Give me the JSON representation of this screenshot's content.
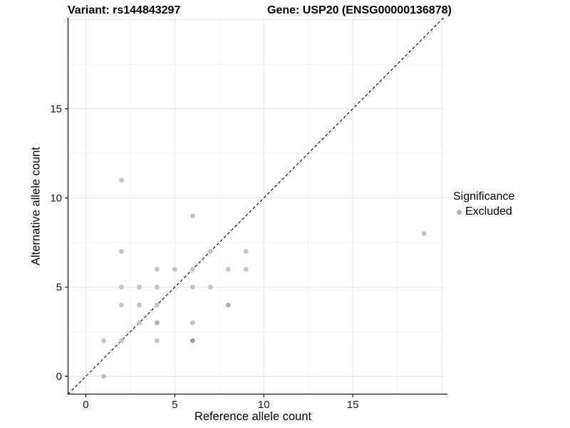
{
  "chart_data": {
    "type": "scatter",
    "title_variant": "Variant: rs144843297",
    "title_gene": "Gene: USP20 (ENSG00000136878)",
    "xlabel": "Reference allele count",
    "ylabel": "Alternative allele count",
    "xlim": [
      -1,
      20.2
    ],
    "ylim": [
      -1,
      20.1
    ],
    "xticks": [
      0,
      5,
      10,
      15
    ],
    "yticks": [
      0,
      5,
      10,
      15
    ],
    "major_gridlines_x": [
      0,
      5,
      10,
      15,
      20
    ],
    "minor_gridlines_x": [
      2.5,
      7.5,
      12.5,
      17.5
    ],
    "major_gridlines_y": [
      0,
      5,
      10,
      15,
      20
    ],
    "minor_gridlines_y": [
      2.5,
      7.5,
      12.5,
      17.5
    ],
    "grid": true,
    "identity_line": {
      "slope": 1,
      "intercept": 0,
      "style": "dashed",
      "color": "#000000"
    },
    "point_format": "[reference_allele_count, alternative_allele_count, overlap_count]",
    "series": [
      {
        "name": "Excluded",
        "points": [
          [
            1,
            0,
            1
          ],
          [
            1,
            2,
            1
          ],
          [
            2,
            2,
            1
          ],
          [
            4,
            2,
            1
          ],
          [
            6,
            2,
            3
          ],
          [
            3,
            3,
            1
          ],
          [
            4,
            3,
            2
          ],
          [
            6,
            3,
            1
          ],
          [
            2,
            4,
            1
          ],
          [
            3,
            4,
            1
          ],
          [
            4,
            4,
            1
          ],
          [
            8,
            4,
            2
          ],
          [
            2,
            5,
            1
          ],
          [
            3,
            5,
            1
          ],
          [
            4,
            5,
            1
          ],
          [
            6,
            5,
            1
          ],
          [
            7,
            5,
            1
          ],
          [
            4,
            6,
            1
          ],
          [
            5,
            6,
            1
          ],
          [
            6,
            6,
            1
          ],
          [
            8,
            6,
            1
          ],
          [
            9,
            6,
            1
          ],
          [
            2,
            7,
            1
          ],
          [
            7,
            7,
            1
          ],
          [
            9,
            7,
            1
          ],
          [
            19,
            8,
            1
          ],
          [
            6,
            9,
            1
          ],
          [
            2,
            11,
            1
          ]
        ]
      }
    ],
    "point_colors_by_overlap": {
      "1": "#c5c5c5",
      "2": "#aeaeae",
      "3": "#9e9e9e"
    },
    "legend": {
      "title": "Significance",
      "position": "right",
      "entries": [
        {
          "label": "Excluded",
          "color": "#b2b2b2"
        }
      ]
    },
    "colors": {
      "major_grid": "#e9e9e9",
      "minor_grid": "#f4f4f4",
      "axis_line": "#1a1a1a",
      "tick_label": "#1a1a1a",
      "point_default": "#c5c5c5",
      "background": "#ffffff"
    }
  }
}
